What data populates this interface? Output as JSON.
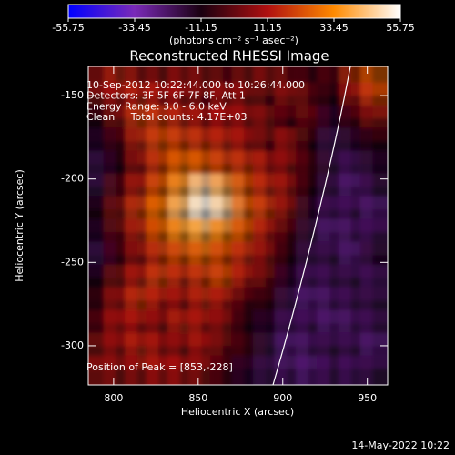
{
  "chart_data": {
    "type": "heatmap",
    "title": "Reconstructed RHESSI Image",
    "xlabel": "Heliocentric X (arcsec)",
    "ylabel": "Heliocentric Y (arcsec)",
    "colorbar_label": "(photons cm⁻² s⁻¹ asec⁻²)",
    "annotations": [
      "10-Sep-2012 10:22:44.000 to 10:26:44.000",
      "Detectors: 3F 5F 6F 7F 8F, Att 1",
      "Energy Range: 3.0 - 6.0 keV",
      "Clean     Total counts: 4.17E+03"
    ],
    "peak_note": "Position of Peak = [853,-228]",
    "footer": "14-May-2022 10:22",
    "xlim": [
      785,
      962
    ],
    "ylim": [
      -323.5,
      -132.5
    ],
    "xticks": [
      800,
      850,
      900,
      950
    ],
    "yticks": [
      -150,
      -200,
      -250,
      -300
    ],
    "zlim": [
      -55.75,
      55.75
    ],
    "zticks": [
      -55.75,
      -33.45,
      -11.15,
      11.15,
      33.45,
      55.75
    ],
    "colors": [
      "#0000ff",
      "#7a2ab8",
      "#1a0010",
      "#b01010",
      "#ff8a00",
      "#ffffff"
    ],
    "x": [
      791.3,
      803.9,
      816.6,
      829.2,
      841.9,
      854.5,
      867.1,
      879.8,
      892.4,
      905.1,
      917.7,
      930.3,
      943.0,
      955.7
    ],
    "y": [
      -139.3,
      -152.9,
      -166.6,
      -180.2,
      -193.9,
      -207.5,
      -221.1,
      -234.8,
      -248.4,
      -262.1,
      -275.7,
      -289.4,
      -303.0,
      -316.7
    ],
    "z": [
      [
        12,
        15,
        8,
        5,
        10,
        6,
        2,
        5,
        8,
        3,
        -5,
        0,
        18,
        25
      ],
      [
        5,
        10,
        15,
        12,
        8,
        3,
        10,
        5,
        -2,
        8,
        0,
        -10,
        10,
        20
      ],
      [
        -10,
        5,
        20,
        18,
        15,
        10,
        12,
        8,
        5,
        -5,
        2,
        -15,
        -5,
        5
      ],
      [
        -15,
        -5,
        15,
        22,
        20,
        18,
        15,
        10,
        0,
        12,
        -10,
        -20,
        -15,
        -10
      ],
      [
        -20,
        -10,
        8,
        20,
        28,
        25,
        20,
        18,
        12,
        5,
        -5,
        -18,
        -22,
        -15
      ],
      [
        -18,
        0,
        15,
        25,
        38,
        50,
        40,
        22,
        15,
        8,
        -10,
        -20,
        -25,
        -18
      ],
      [
        -10,
        5,
        20,
        30,
        45,
        55,
        48,
        25,
        18,
        5,
        -15,
        -22,
        -20,
        -25
      ],
      [
        -15,
        0,
        15,
        25,
        35,
        38,
        30,
        22,
        10,
        -5,
        -18,
        -25,
        -22,
        -20
      ],
      [
        -20,
        -5,
        8,
        18,
        22,
        25,
        20,
        15,
        5,
        -10,
        -20,
        -18,
        -25,
        -15
      ],
      [
        -12,
        5,
        15,
        20,
        15,
        18,
        22,
        10,
        0,
        -15,
        -22,
        -20,
        -18,
        -22
      ],
      [
        -5,
        10,
        18,
        12,
        8,
        15,
        10,
        -5,
        -8,
        -20,
        -25,
        -22,
        -20,
        -18
      ],
      [
        0,
        12,
        10,
        5,
        15,
        10,
        5,
        -10,
        -15,
        -22,
        -20,
        -25,
        -22,
        -20
      ],
      [
        5,
        8,
        15,
        10,
        5,
        12,
        0,
        -5,
        -18,
        -25,
        -22,
        -18,
        -20,
        -25
      ],
      [
        10,
        5,
        8,
        12,
        10,
        5,
        -5,
        -15,
        -20,
        -22,
        -25,
        -20,
        -22,
        -18
      ]
    ]
  }
}
